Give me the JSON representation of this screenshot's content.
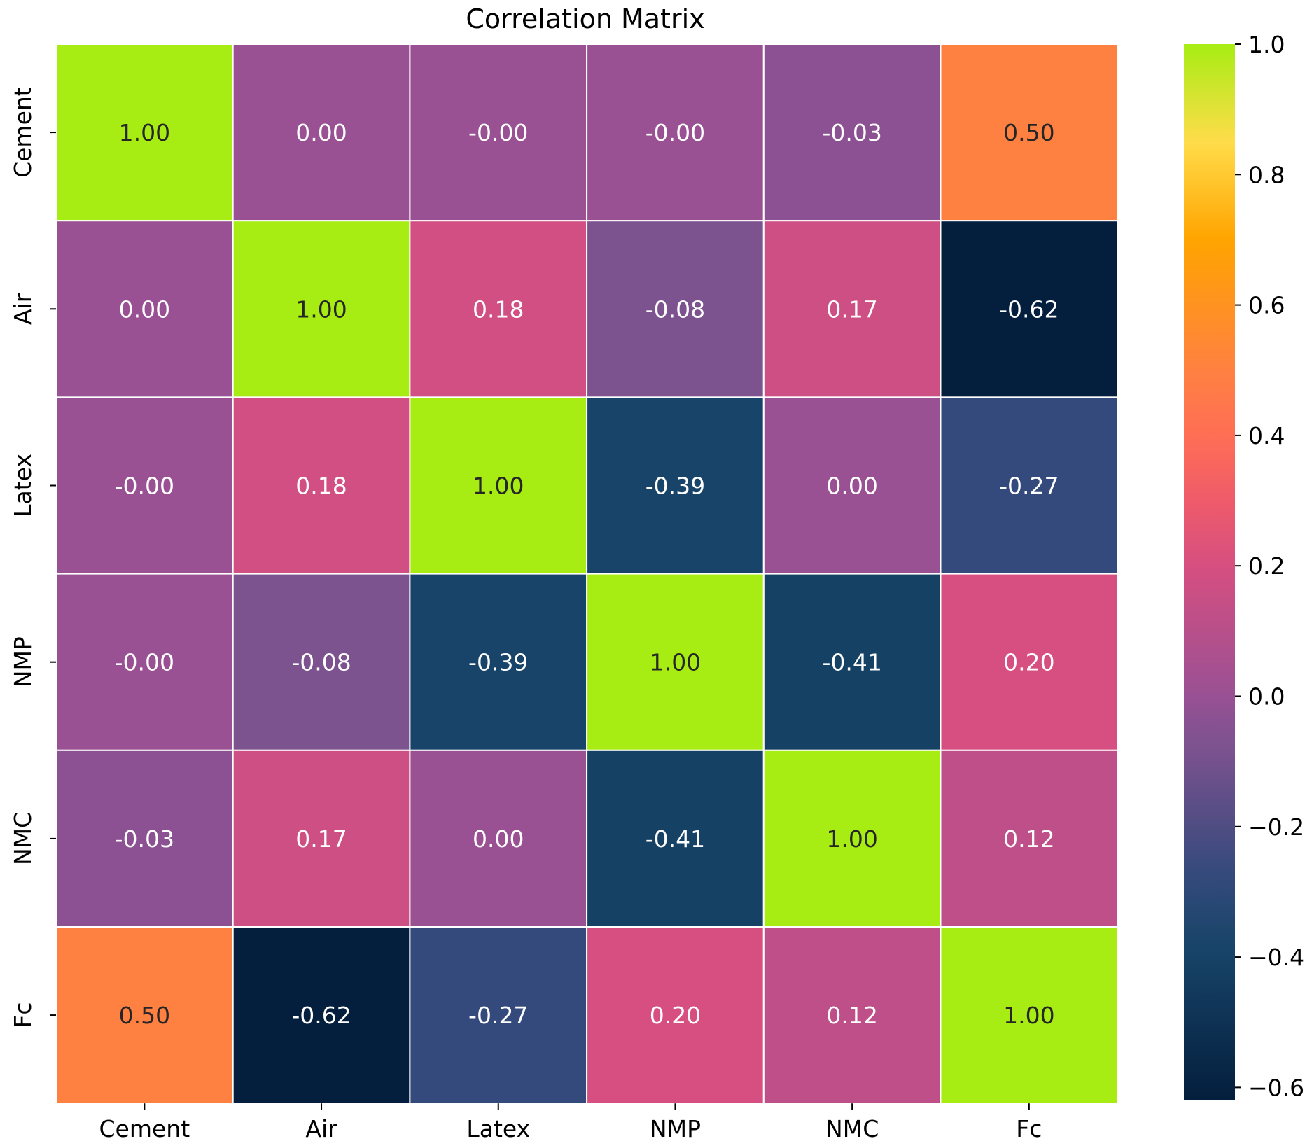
{
  "chart_data": {
    "type": "heatmap",
    "title": "Correlation Matrix",
    "xlabel": "",
    "ylabel": "",
    "x_categories": [
      "Cement",
      "Air",
      "Latex",
      "NMP",
      "NMC",
      "Fc"
    ],
    "y_categories": [
      "Cement",
      "Air",
      "Latex",
      "NMP",
      "NMC",
      "Fc"
    ],
    "values": [
      [
        1.0,
        0.0,
        -0.0,
        -0.0,
        -0.03,
        0.5
      ],
      [
        0.0,
        1.0,
        0.18,
        -0.08,
        0.17,
        -0.62
      ],
      [
        -0.0,
        0.18,
        1.0,
        -0.39,
        0.0,
        -0.27
      ],
      [
        -0.0,
        -0.08,
        -0.39,
        1.0,
        -0.41,
        0.2
      ],
      [
        -0.03,
        0.17,
        0.0,
        -0.41,
        1.0,
        0.12
      ],
      [
        0.5,
        -0.62,
        -0.27,
        0.2,
        0.12,
        1.0
      ]
    ],
    "value_labels": [
      [
        "1.00",
        "0.00",
        "-0.00",
        "-0.00",
        "-0.03",
        "0.50"
      ],
      [
        "0.00",
        "1.00",
        "0.18",
        "-0.08",
        "0.17",
        "-0.62"
      ],
      [
        "-0.00",
        "0.18",
        "1.00",
        "-0.39",
        "0.00",
        "-0.27"
      ],
      [
        "-0.00",
        "-0.08",
        "-0.39",
        "1.00",
        "-0.41",
        "0.20"
      ],
      [
        "-0.03",
        "0.17",
        "0.00",
        "-0.41",
        "1.00",
        "0.12"
      ],
      [
        "0.50",
        "-0.62",
        "-0.27",
        "0.20",
        "0.12",
        "1.00"
      ]
    ],
    "colorbar": {
      "vmin": -0.62,
      "vmax": 1.0,
      "ticks": [
        1.0,
        0.8,
        0.6,
        0.4,
        0.2,
        0.0,
        -0.2,
        -0.4,
        -0.6
      ],
      "tick_labels": [
        "1.0",
        "0.8",
        "0.6",
        "0.4",
        "0.2",
        "0.0",
        "−0.2",
        "−0.4",
        "−0.6"
      ],
      "colormap": [
        {
          "v": -0.62,
          "color": "#041E3D"
        },
        {
          "v": -0.39,
          "color": "#174468"
        },
        {
          "v": -0.27,
          "color": "#354A7C"
        },
        {
          "v": -0.08,
          "color": "#7C528F"
        },
        {
          "v": -0.03,
          "color": "#8C5192"
        },
        {
          "v": 0.0,
          "color": "#995194"
        },
        {
          "v": 0.12,
          "color": "#BE4F88"
        },
        {
          "v": 0.17,
          "color": "#CE4F84"
        },
        {
          "v": 0.2,
          "color": "#D64F80"
        },
        {
          "v": 0.3,
          "color": "#EF5B6A"
        },
        {
          "v": 0.4,
          "color": "#FF6E55"
        },
        {
          "v": 0.5,
          "color": "#FF8141"
        },
        {
          "v": 0.7,
          "color": "#FFA400"
        },
        {
          "v": 0.85,
          "color": "#FFDC4A"
        },
        {
          "v": 1.0,
          "color": "#A7ED14"
        }
      ]
    }
  }
}
